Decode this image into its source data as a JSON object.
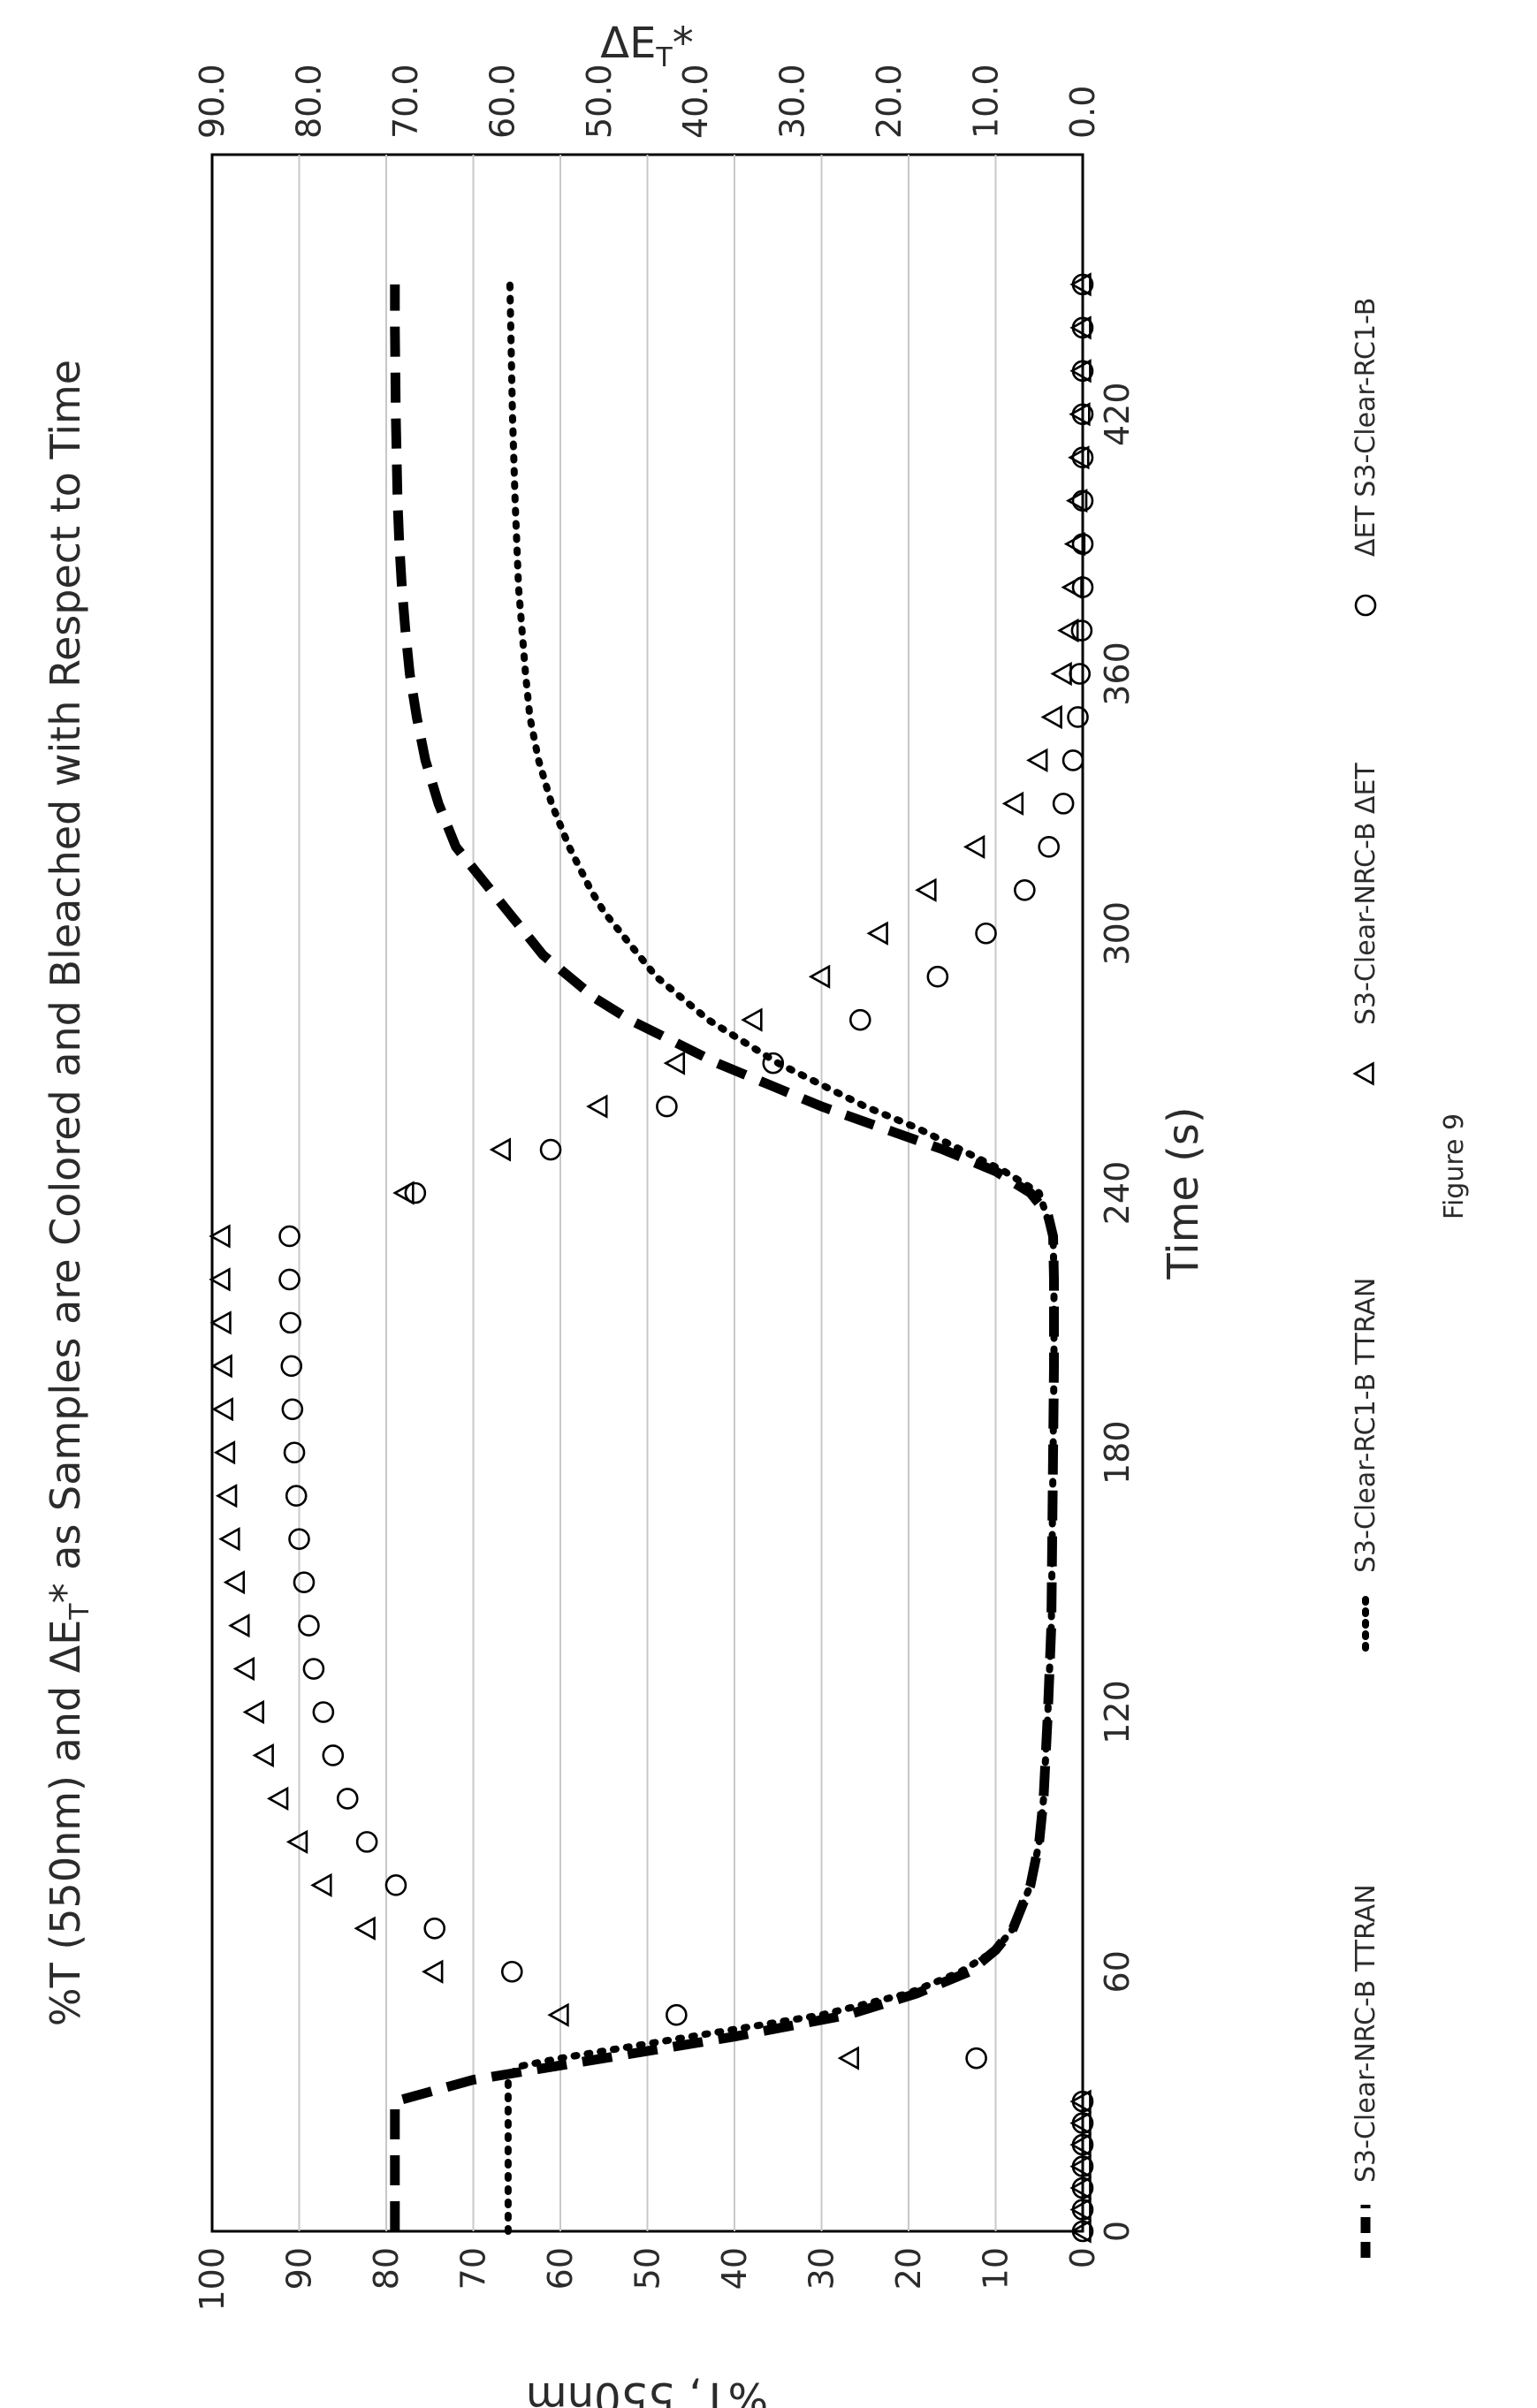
{
  "caption": "Figure 9",
  "chart_data": {
    "type": "line",
    "title": "%T (550nm) and ΔE",
    "title_subscript": "T",
    "title_suffix": "* as Samples are Colored and Bleached with Respect to Time",
    "xlabel": "Time  (s)",
    "ylabel": "%T, 550nm",
    "y2label": "ΔE",
    "y2label_subscript": "T",
    "y2label_suffix": "*",
    "xlim": [
      0,
      480
    ],
    "ylim": [
      0,
      100
    ],
    "y2lim": [
      0,
      90
    ],
    "x_ticks": [
      "0",
      "60",
      "120",
      "180",
      "240",
      "300",
      "360",
      "420"
    ],
    "y_ticks": [
      "0",
      "10",
      "20",
      "30",
      "40",
      "50",
      "60",
      "70",
      "80",
      "90",
      "100"
    ],
    "y2_ticks": [
      "0.0",
      "10.0",
      "20.0",
      "30.0",
      "40.0",
      "50.0",
      "60.0",
      "70.0",
      "80.0",
      "90.0"
    ],
    "grid": true,
    "legend_position": "bottom",
    "rotation": "chart printed rotated 90 degrees counterclockwise",
    "series": [
      {
        "name": "S3-Clear-NRC-B TTRAN",
        "axis": "left",
        "style": "dashed line",
        "color": "#000000",
        "x": [
          0,
          5,
          10,
          15,
          20,
          25,
          30,
          35,
          40,
          45,
          50,
          55,
          60,
          65,
          70,
          80,
          90,
          100,
          120,
          140,
          160,
          180,
          200,
          220,
          230,
          235,
          240,
          245,
          250,
          255,
          260,
          265,
          270,
          275,
          280,
          285,
          290,
          295,
          300,
          305,
          310,
          315,
          320,
          330,
          340,
          350,
          360,
          370,
          380,
          390,
          400,
          420,
          440,
          450
        ],
        "y": [
          79,
          79,
          79,
          79,
          79,
          79,
          79,
          70,
          55,
          40,
          27,
          19,
          13,
          10,
          8,
          6,
          5,
          4.5,
          4,
          3.6,
          3.5,
          3.4,
          3.3,
          3.3,
          3.4,
          4,
          6,
          10,
          16,
          23,
          30,
          36,
          42,
          47,
          52,
          56,
          59,
          62,
          64,
          66,
          68,
          70,
          72,
          74,
          75.5,
          76.5,
          77.3,
          77.8,
          78.2,
          78.5,
          78.7,
          78.9,
          79,
          79
        ]
      },
      {
        "name": "S3-Clear-RC1-B TTRAN",
        "axis": "left",
        "style": "dotted line",
        "color": "#000000",
        "x": [
          0,
          10,
          20,
          30,
          35,
          38,
          40,
          45,
          50,
          55,
          60,
          65,
          70,
          80,
          90,
          100,
          120,
          140,
          160,
          180,
          200,
          220,
          230,
          240,
          245,
          250,
          255,
          260,
          265,
          270,
          275,
          280,
          285,
          290,
          295,
          300,
          305,
          310,
          320,
          330,
          340,
          350,
          360,
          380,
          400,
          420,
          440,
          450
        ],
        "y": [
          66,
          66,
          66,
          66,
          66,
          65,
          60,
          45,
          30,
          20,
          14,
          10,
          8,
          6,
          5,
          4.5,
          4,
          3.6,
          3.5,
          3.4,
          3.3,
          3.3,
          3.4,
          5,
          9,
          14,
          19,
          25,
          30,
          35,
          39,
          43,
          46,
          49,
          51,
          53,
          55,
          56.5,
          59,
          61,
          62.5,
          63.5,
          64,
          64.8,
          65.2,
          65.5,
          65.7,
          65.8
        ]
      },
      {
        "name": "S3-Clear-NRC-B ΔET",
        "axis": "right",
        "style": "triangle markers",
        "color": "#000000",
        "x": [
          0,
          5,
          10,
          15,
          20,
          25,
          30,
          40,
          50,
          60,
          70,
          80,
          90,
          100,
          110,
          120,
          130,
          140,
          150,
          160,
          170,
          180,
          190,
          200,
          210,
          220,
          230,
          240,
          250,
          260,
          270,
          280,
          290,
          300,
          310,
          320,
          330,
          340,
          350,
          360,
          370,
          380,
          390,
          400,
          410,
          420,
          430,
          440,
          450
        ],
        "y": [
          0,
          0,
          0,
          0,
          0,
          0,
          0,
          24,
          54,
          67,
          74,
          78.5,
          81,
          83,
          84.5,
          85.5,
          86.5,
          87,
          87.5,
          88,
          88.3,
          88.5,
          88.7,
          88.8,
          88.9,
          89,
          89,
          70,
          60,
          50,
          42,
          34,
          27,
          21,
          16,
          11,
          7,
          4.5,
          3,
          2,
          1.3,
          0.9,
          0.6,
          0.4,
          0.2,
          0.1,
          0,
          0,
          0
        ]
      },
      {
        "name": "ΔET S3-Clear-RC1-B",
        "axis": "right",
        "style": "circle markers",
        "color": "#000000",
        "x": [
          0,
          5,
          10,
          15,
          20,
          25,
          30,
          40,
          50,
          60,
          70,
          80,
          90,
          100,
          110,
          120,
          130,
          140,
          150,
          160,
          170,
          180,
          190,
          200,
          210,
          220,
          230,
          240,
          250,
          260,
          270,
          280,
          290,
          300,
          310,
          320,
          330,
          340,
          350,
          360,
          370,
          380,
          390,
          400,
          410,
          420,
          430,
          440,
          450
        ],
        "y": [
          0,
          0,
          0,
          0,
          0,
          0,
          0,
          11,
          42,
          59,
          67,
          71,
          74,
          76,
          77.5,
          78.5,
          79.5,
          80,
          80.5,
          81,
          81.3,
          81.5,
          81.7,
          81.8,
          81.9,
          82,
          82,
          69,
          55,
          43,
          32,
          23,
          15,
          10,
          6,
          3.5,
          2,
          1,
          0.5,
          0.3,
          0.1,
          0,
          0,
          0,
          0,
          0,
          0,
          0,
          0
        ]
      }
    ]
  }
}
